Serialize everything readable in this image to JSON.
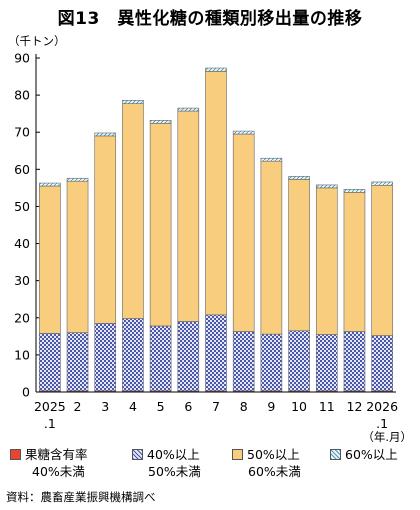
{
  "title": "図13　異性化糖の種類別移出量の推移",
  "source": "資料：農畜産業振興機構調べ",
  "colors": {
    "s1": "#e8452c",
    "s2": "#6b78c8",
    "s3": "#f9cd7e",
    "s4": "#9fd6e6",
    "axis": "#000000"
  },
  "legend": [
    {
      "line1": "果糖含有率",
      "line2": "40%未満"
    },
    {
      "line1": "40%以上",
      "line2": "50%未満"
    },
    {
      "line1": "50%以上",
      "line2": "60%未満"
    },
    {
      "line1": "60%以上",
      "line2": ""
    }
  ],
  "chart_data": {
    "type": "bar",
    "stacked": true,
    "ylabel": "（千トン）",
    "xunit": "（年.月）",
    "ylim": [
      0,
      90
    ],
    "yticks": [
      0,
      10,
      20,
      30,
      40,
      50,
      60,
      70,
      80,
      90
    ],
    "categories": [
      "2025\n.1",
      "2",
      "3",
      "4",
      "5",
      "6",
      "7",
      "8",
      "9",
      "10",
      "11",
      "12",
      "2026\n.1"
    ],
    "series": [
      {
        "name": "果糖含有率 40%未満",
        "values": [
          0.3,
          0.3,
          0.3,
          0.3,
          0.3,
          0.3,
          0.3,
          0.3,
          0.3,
          0.3,
          0.3,
          0.3,
          0.3
        ]
      },
      {
        "name": "40%以上 50%未満",
        "values": [
          15.5,
          15.7,
          18.2,
          19.5,
          17.5,
          18.7,
          20.5,
          16.0,
          15.3,
          16.2,
          15.2,
          16.0,
          14.9
        ]
      },
      {
        "name": "50%以上 60%未満",
        "values": [
          39.7,
          40.8,
          50.5,
          57.9,
          54.6,
          56.7,
          65.6,
          53.2,
          46.6,
          40.8,
          39.5,
          37.5,
          40.5
        ]
      },
      {
        "name": "60%以上",
        "values": [
          0.8,
          0.8,
          0.8,
          0.9,
          0.8,
          0.8,
          0.9,
          0.8,
          0.8,
          0.8,
          0.8,
          0.8,
          0.9
        ]
      }
    ],
    "grid": false,
    "legend_position": "bottom"
  }
}
